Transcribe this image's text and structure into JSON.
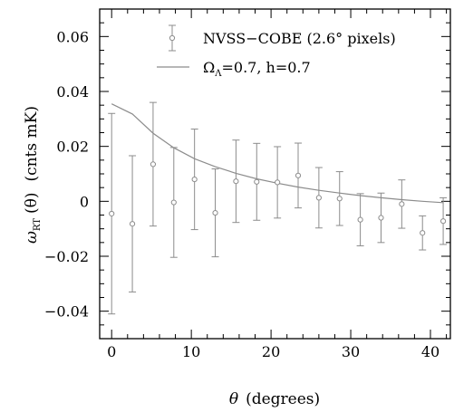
{
  "chart_data": {
    "type": "scatter",
    "xlabel": "θ",
    "xlabel_unit": "(degrees)",
    "ylabel_main": "ω",
    "ylabel_sub": "RT",
    "ylabel_arg": "(θ)",
    "ylabel_unit": "(cnts mK)",
    "xlim": [
      -1.5,
      42.5
    ],
    "ylim": [
      -0.05,
      0.07
    ],
    "x_ticks": [
      0,
      10,
      20,
      30,
      40
    ],
    "x_tick_labels": [
      "0",
      "10",
      "20",
      "30",
      "40"
    ],
    "y_ticks": [
      -0.04,
      -0.02,
      0,
      0.02,
      0.04,
      0.06
    ],
    "y_tick_labels": [
      "−0.04",
      "−0.02",
      "0",
      "0.02",
      "0.04",
      "0.06"
    ],
    "grid": false,
    "legend_position": "top-right",
    "series": [
      {
        "name": "NVSS−COBE (2.6° pixels)",
        "kind": "errorbar",
        "color": "#8c8c8c",
        "x": [
          0,
          2.6,
          5.2,
          7.8,
          10.4,
          13.0,
          15.6,
          18.2,
          20.8,
          23.4,
          26.0,
          28.6,
          31.2,
          33.8,
          36.4,
          39.0,
          41.6
        ],
        "y": [
          -0.0045,
          -0.0082,
          0.0135,
          -0.0004,
          0.008,
          -0.0042,
          0.0073,
          0.0071,
          0.0069,
          0.0094,
          0.0013,
          0.001,
          -0.0067,
          -0.006,
          -0.001,
          -0.0115,
          -0.0072
        ],
        "yerr": [
          0.0365,
          0.0248,
          0.0225,
          0.02,
          0.0183,
          0.016,
          0.015,
          0.014,
          0.013,
          0.0118,
          0.011,
          0.0098,
          0.0095,
          0.009,
          0.0088,
          0.0062,
          0.0085
        ]
      },
      {
        "name": "Ω_Λ=0.7, h=0.7",
        "kind": "line",
        "color": "#8c8c8c",
        "x": [
          0,
          2.6,
          5.2,
          7.8,
          10.4,
          13.0,
          15.6,
          18.2,
          20.8,
          23.4,
          26.0,
          28.6,
          31.2,
          33.8,
          36.4,
          39.0,
          41.6
        ],
        "y": [
          0.0355,
          0.0318,
          0.0248,
          0.0195,
          0.0155,
          0.0126,
          0.0102,
          0.0082,
          0.0066,
          0.0052,
          0.004,
          0.003,
          0.0021,
          0.0013,
          0.0006,
          0.0,
          -0.0005
        ]
      }
    ]
  }
}
